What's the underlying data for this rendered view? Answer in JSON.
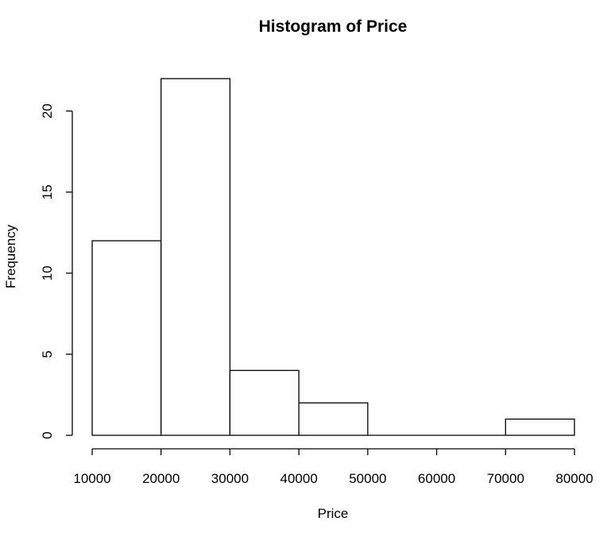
{
  "chart_data": {
    "type": "bar",
    "title": "Histogram of Price",
    "xlabel": "Price",
    "ylabel": "Frequency",
    "bins": [
      {
        "from": 10000,
        "to": 20000,
        "count": 12
      },
      {
        "from": 20000,
        "to": 30000,
        "count": 22
      },
      {
        "from": 30000,
        "to": 40000,
        "count": 4
      },
      {
        "from": 40000,
        "to": 50000,
        "count": 2
      },
      {
        "from": 50000,
        "to": 60000,
        "count": 0
      },
      {
        "from": 60000,
        "to": 70000,
        "count": 0
      },
      {
        "from": 70000,
        "to": 80000,
        "count": 1
      }
    ],
    "x_ticks": [
      "10000",
      "20000",
      "30000",
      "40000",
      "50000",
      "60000",
      "70000",
      "80000"
    ],
    "y_ticks": [
      "0",
      "5",
      "10",
      "15",
      "20"
    ],
    "xlim": [
      10000,
      80000
    ],
    "ylim": [
      0,
      22
    ],
    "grid": false,
    "legend": "none",
    "bar_fill": "#ffffff",
    "bar_stroke": "#000000"
  }
}
